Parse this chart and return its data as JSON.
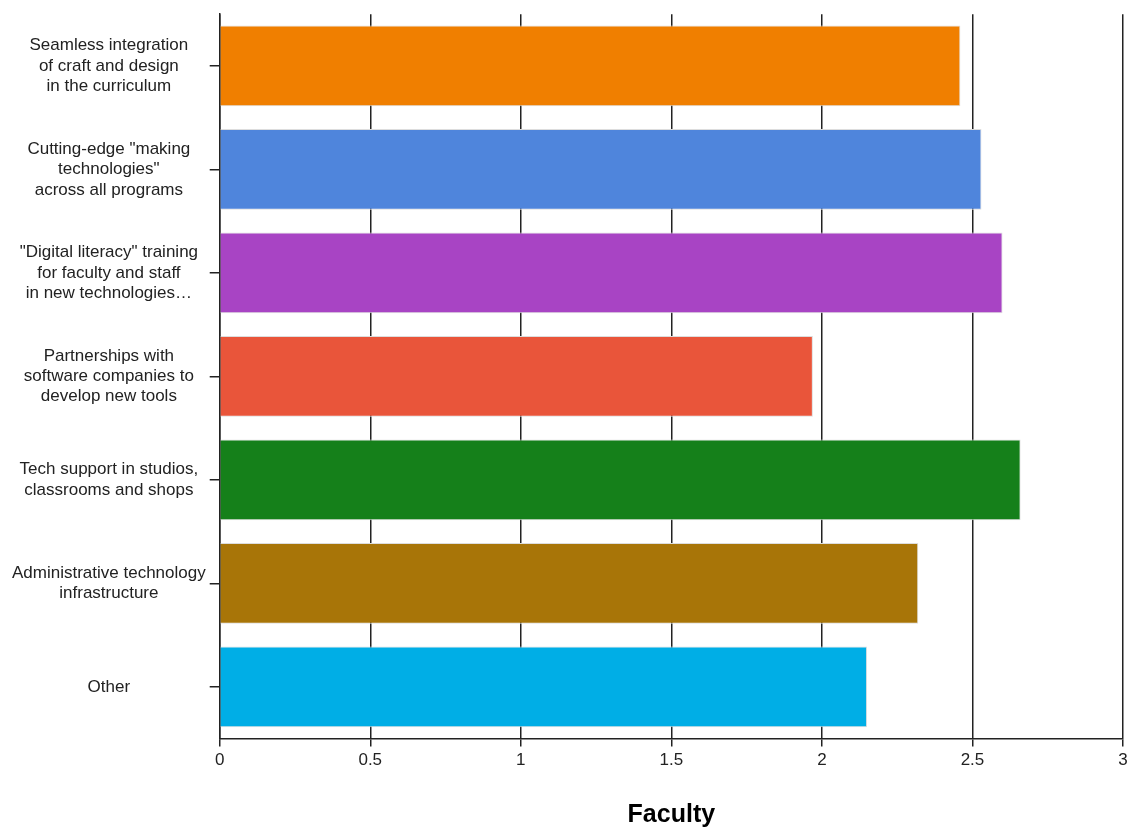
{
  "chart_data": {
    "type": "bar",
    "orientation": "horizontal",
    "xlabel": "Faculty",
    "categories": [
      "Seamless integration\nof craft and design\nin the curriculum",
      "Cutting-edge \"making\ntechnologies\"\nacross all programs",
      "\"Digital literacy\" training\nfor faculty and staff\nin new technologies…",
      "Partnerships with\nsoftware companies to\ndevelop new tools",
      "Tech support in studios,\nclassrooms and shops",
      "Administrative technology\ninfrastructure",
      "Other"
    ],
    "values": [
      2.46,
      2.53,
      2.6,
      1.97,
      2.66,
      2.32,
      2.15
    ],
    "colors": [
      "#f07f00",
      "#4f85dc",
      "#a844c4",
      "#e9553a",
      "#15801a",
      "#a87508",
      "#00aee6"
    ],
    "xlim": [
      0,
      3
    ],
    "xticks": [
      0,
      0.5,
      1,
      1.5,
      2,
      2.5,
      3
    ],
    "grid": "x",
    "legend": false
  }
}
